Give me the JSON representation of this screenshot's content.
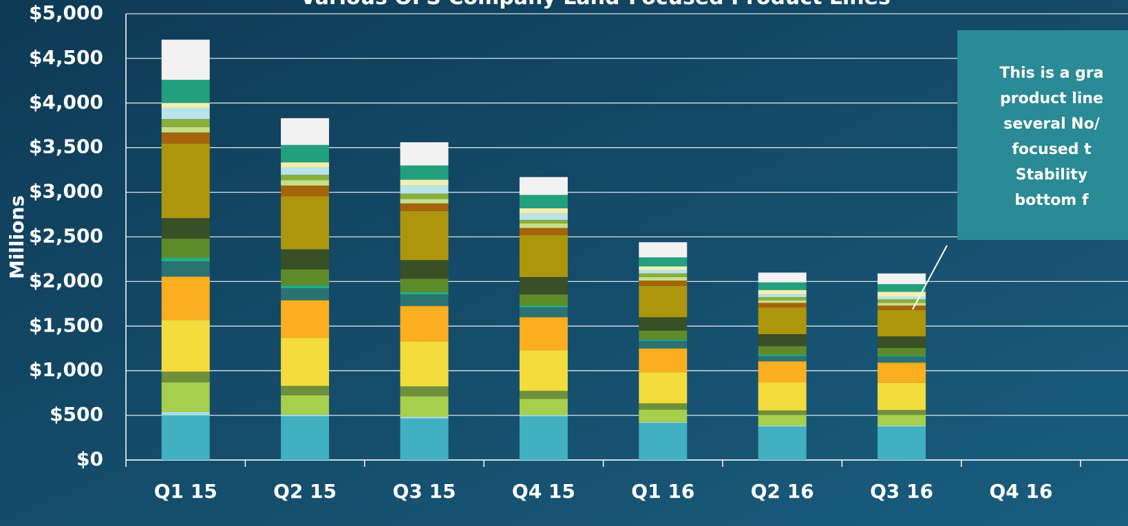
{
  "chart_data": {
    "type": "stacked_bar",
    "title": "Various OFS Company Land-Focused Product Lines",
    "y_label": "Millions",
    "annotation": [
      "This is a gra",
      "product line",
      "several No/",
      "focused t",
      "Stability",
      "bottom f"
    ],
    "categories": [
      "Q1 15",
      "Q2 15",
      "Q3 15",
      "Q4 15",
      "Q1 16",
      "Q2 16",
      "Q3 16",
      "Q4 16"
    ],
    "ylim": [
      0,
      5000
    ],
    "yticks": [
      {
        "value": 0,
        "label": "$0"
      },
      {
        "value": 500,
        "label": "$500"
      },
      {
        "value": 1000,
        "label": "$1,000"
      },
      {
        "value": 1500,
        "label": "$1,500"
      },
      {
        "value": 2000,
        "label": "$2,000"
      },
      {
        "value": 2500,
        "label": "$2,500"
      },
      {
        "value": 3000,
        "label": "$3,000"
      },
      {
        "value": 3500,
        "label": "$3,500"
      },
      {
        "value": 4000,
        "label": "$4,000"
      },
      {
        "value": 4500,
        "label": "$4,500"
      },
      {
        "value": 5000,
        "label": "$5,000"
      }
    ],
    "grid": true,
    "series": [
      {
        "color": "#41b0c0",
        "values": [
          500,
          490,
          465,
          490,
          415,
          375,
          375,
          null
        ]
      },
      {
        "color": "#a8dde0",
        "values": [
          40,
          20,
          20,
          15,
          10,
          10,
          10,
          null
        ]
      },
      {
        "color": "#a5cf4c",
        "values": [
          330,
          215,
          230,
          180,
          140,
          120,
          120,
          null
        ]
      },
      {
        "color": "#6f8f3a",
        "values": [
          120,
          105,
          110,
          90,
          70,
          50,
          55,
          null
        ]
      },
      {
        "color": "#f3dc3b",
        "values": [
          580,
          540,
          500,
          455,
          350,
          315,
          305,
          null
        ]
      },
      {
        "color": "#fbae1f",
        "values": [
          485,
          420,
          400,
          370,
          265,
          235,
          225,
          null
        ]
      },
      {
        "color": "#2b7272",
        "values": [
          170,
          135,
          130,
          110,
          85,
          60,
          70,
          null
        ]
      },
      {
        "color": "#21b08a",
        "values": [
          40,
          30,
          25,
          20,
          15,
          15,
          10,
          null
        ]
      },
      {
        "color": "#5f8a2a",
        "values": [
          215,
          180,
          150,
          125,
          100,
          95,
          85,
          null
        ]
      },
      {
        "color": "#394f25",
        "values": [
          230,
          225,
          210,
          195,
          150,
          135,
          130,
          null
        ]
      },
      {
        "color": "#ad960c",
        "values": [
          835,
          595,
          550,
          470,
          350,
          300,
          295,
          null
        ]
      },
      {
        "color": "#a5640a",
        "values": [
          125,
          120,
          85,
          80,
          60,
          50,
          50,
          null
        ]
      },
      {
        "color": "#c5e08a",
        "values": [
          60,
          60,
          50,
          50,
          40,
          30,
          30,
          null
        ]
      },
      {
        "color": "#8aae3a",
        "values": [
          90,
          60,
          60,
          40,
          40,
          35,
          40,
          null
        ]
      },
      {
        "color": "#b8e4ea",
        "values": [
          125,
          80,
          90,
          70,
          40,
          30,
          30,
          null
        ]
      },
      {
        "color": "#f2eeb0",
        "values": [
          55,
          60,
          65,
          60,
          40,
          50,
          55,
          null
        ]
      },
      {
        "color": "#22a07e",
        "values": [
          260,
          195,
          160,
          150,
          100,
          85,
          85,
          null
        ]
      },
      {
        "color": "#f2f2f2",
        "values": [
          450,
          300,
          260,
          200,
          170,
          110,
          120,
          null
        ]
      }
    ]
  }
}
